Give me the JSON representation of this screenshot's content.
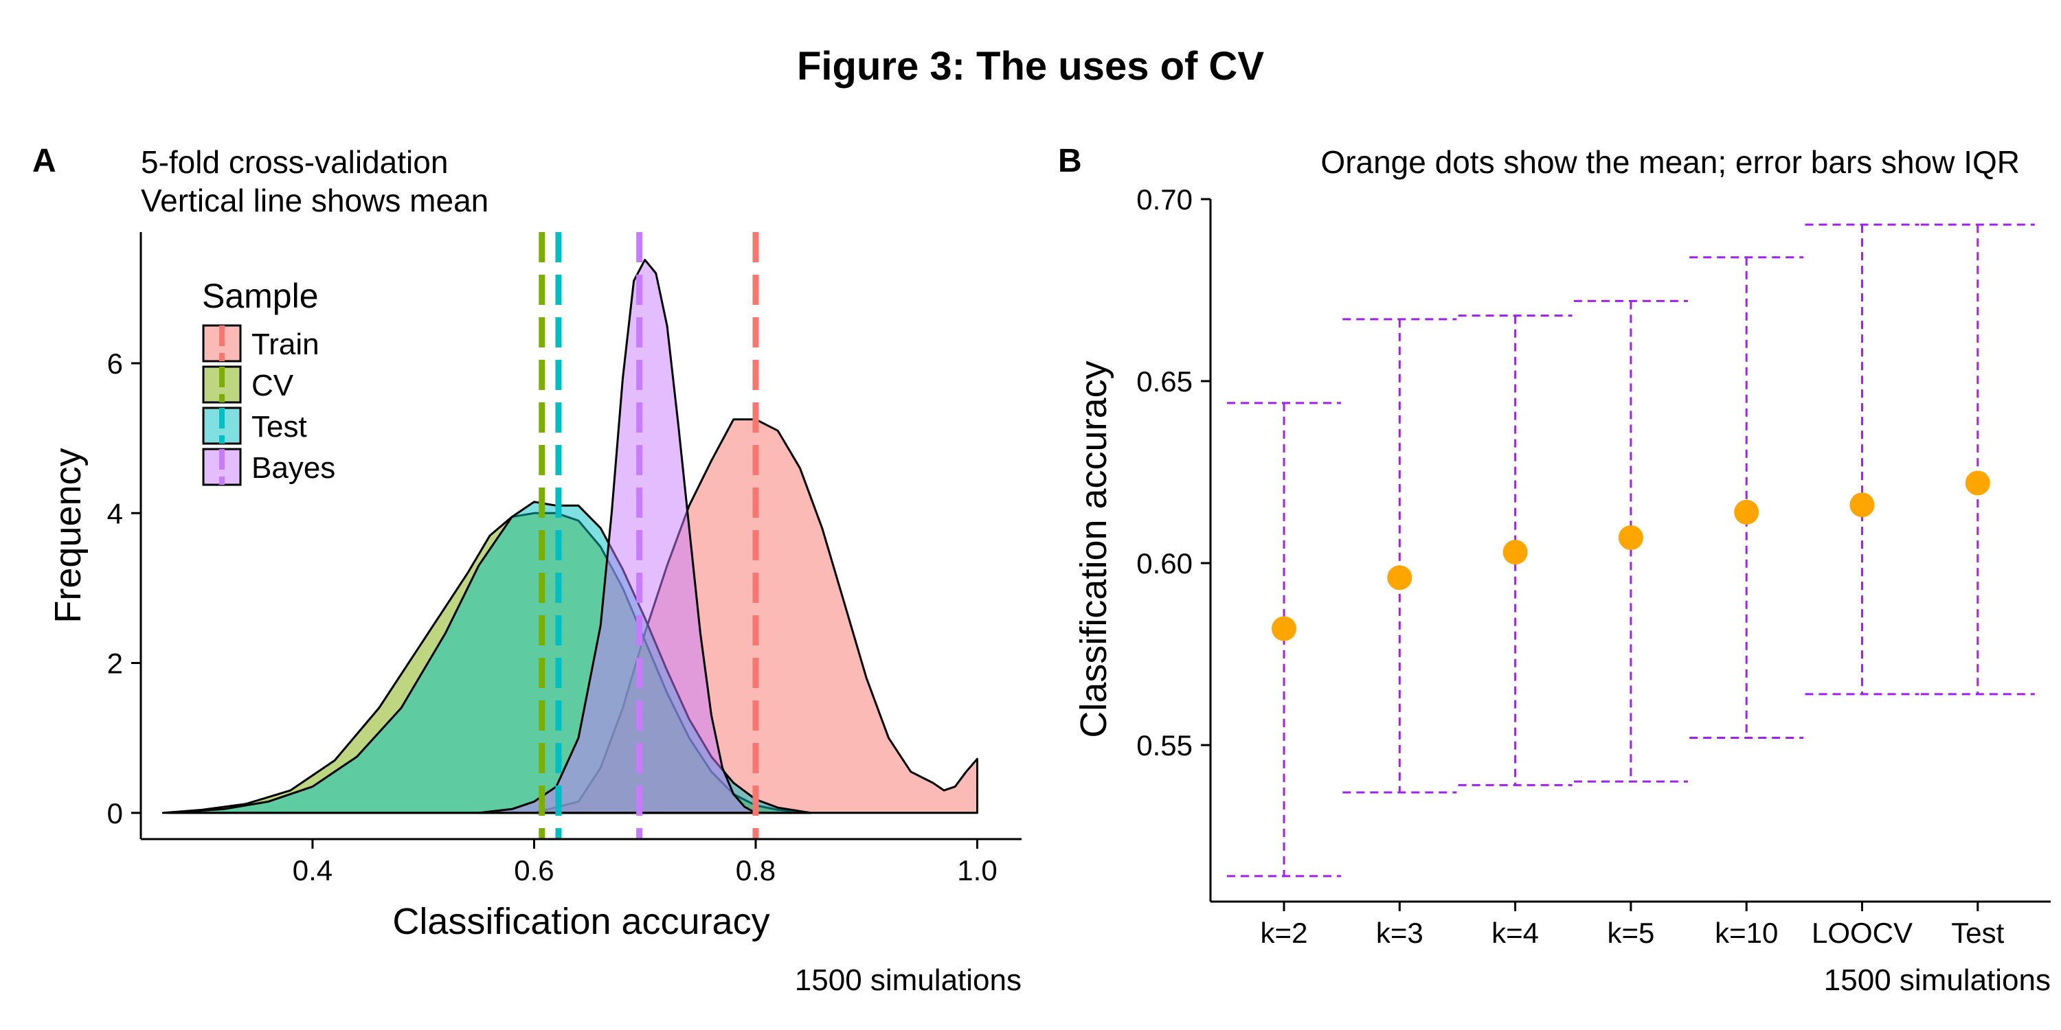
{
  "figure_title": "Figure 3: The uses of CV",
  "panel_a": {
    "letter": "A",
    "subtitle_line1": "5-fold cross-validation",
    "subtitle_line2": "Vertical line shows mean",
    "caption": "1500 simulations",
    "legend_title": "Sample"
  },
  "panel_b": {
    "letter": "B",
    "subtitle": "Orange dots show the mean; error bars show IQR",
    "caption": "1500 simulations"
  },
  "chart_data": [
    {
      "type": "area",
      "xlabel": "Classification accuracy",
      "ylabel": "Frequency",
      "xlim": [
        0.245,
        1.04
      ],
      "ylim": [
        -0.35,
        7.75
      ],
      "x_ticks": [
        "0.4",
        "0.6",
        "0.8",
        "1.0"
      ],
      "y_ticks": [
        "0",
        "2",
        "4",
        "6"
      ],
      "grid": false,
      "legend_position": "top-left",
      "series": [
        {
          "name": "Train",
          "color": "#F8766D",
          "mean": 0.8,
          "points": [
            [
              0.6,
              0.0
            ],
            [
              0.64,
              0.15
            ],
            [
              0.66,
              0.6
            ],
            [
              0.68,
              1.4
            ],
            [
              0.7,
              2.4
            ],
            [
              0.72,
              3.3
            ],
            [
              0.74,
              4.1
            ],
            [
              0.76,
              4.7
            ],
            [
              0.78,
              5.25
            ],
            [
              0.8,
              5.25
            ],
            [
              0.82,
              5.1
            ],
            [
              0.84,
              4.6
            ],
            [
              0.86,
              3.8
            ],
            [
              0.88,
              2.8
            ],
            [
              0.9,
              1.8
            ],
            [
              0.92,
              1.0
            ],
            [
              0.94,
              0.55
            ],
            [
              0.96,
              0.4
            ],
            [
              0.97,
              0.3
            ],
            [
              0.98,
              0.35
            ],
            [
              0.99,
              0.55
            ],
            [
              1.0,
              0.72
            ],
            [
              1.0,
              0.0
            ]
          ]
        },
        {
          "name": "CV",
          "color": "#7CAE00",
          "mean": 0.607,
          "points": [
            [
              0.265,
              0.0
            ],
            [
              0.3,
              0.04
            ],
            [
              0.34,
              0.12
            ],
            [
              0.38,
              0.3
            ],
            [
              0.42,
              0.7
            ],
            [
              0.46,
              1.4
            ],
            [
              0.5,
              2.3
            ],
            [
              0.54,
              3.2
            ],
            [
              0.56,
              3.7
            ],
            [
              0.58,
              3.95
            ],
            [
              0.6,
              4.0
            ],
            [
              0.62,
              4.0
            ],
            [
              0.64,
              3.9
            ],
            [
              0.66,
              3.55
            ],
            [
              0.68,
              3.0
            ],
            [
              0.7,
              2.3
            ],
            [
              0.72,
              1.6
            ],
            [
              0.74,
              1.0
            ],
            [
              0.76,
              0.55
            ],
            [
              0.78,
              0.25
            ],
            [
              0.8,
              0.1
            ],
            [
              0.82,
              0.04
            ],
            [
              0.85,
              0.0
            ]
          ]
        },
        {
          "name": "Test",
          "color": "#00BFC4",
          "mean": 0.622,
          "points": [
            [
              0.27,
              0.0
            ],
            [
              0.32,
              0.05
            ],
            [
              0.36,
              0.15
            ],
            [
              0.4,
              0.35
            ],
            [
              0.44,
              0.75
            ],
            [
              0.48,
              1.4
            ],
            [
              0.52,
              2.4
            ],
            [
              0.55,
              3.3
            ],
            [
              0.58,
              3.95
            ],
            [
              0.6,
              4.15
            ],
            [
              0.62,
              4.1
            ],
            [
              0.64,
              4.1
            ],
            [
              0.66,
              3.8
            ],
            [
              0.68,
              3.25
            ],
            [
              0.7,
              2.6
            ],
            [
              0.72,
              1.9
            ],
            [
              0.74,
              1.25
            ],
            [
              0.76,
              0.75
            ],
            [
              0.78,
              0.4
            ],
            [
              0.8,
              0.18
            ],
            [
              0.82,
              0.07
            ],
            [
              0.85,
              0.0
            ]
          ]
        },
        {
          "name": "Bayes",
          "color": "#C77CFF",
          "mean": 0.695,
          "points": [
            [
              0.55,
              0.0
            ],
            [
              0.58,
              0.05
            ],
            [
              0.6,
              0.15
            ],
            [
              0.62,
              0.35
            ],
            [
              0.64,
              1.0
            ],
            [
              0.66,
              2.5
            ],
            [
              0.67,
              4.0
            ],
            [
              0.68,
              5.8
            ],
            [
              0.69,
              7.1
            ],
            [
              0.7,
              7.38
            ],
            [
              0.71,
              7.2
            ],
            [
              0.72,
              6.5
            ],
            [
              0.73,
              5.2
            ],
            [
              0.74,
              3.8
            ],
            [
              0.75,
              2.4
            ],
            [
              0.76,
              1.3
            ],
            [
              0.77,
              0.6
            ],
            [
              0.78,
              0.25
            ],
            [
              0.79,
              0.08
            ],
            [
              0.8,
              0.0
            ]
          ]
        }
      ]
    },
    {
      "type": "scatter",
      "xlabel": "",
      "ylabel": "Classification accuracy",
      "ylim": [
        0.507,
        0.7
      ],
      "y_ticks": [
        "0.55",
        "0.60",
        "0.65",
        "0.70"
      ],
      "grid": false,
      "categories": [
        "k=2",
        "k=3",
        "k=4",
        "k=5",
        "k=10",
        "LOOCV",
        "Test"
      ],
      "mean": [
        0.582,
        0.596,
        0.603,
        0.607,
        0.614,
        0.616,
        0.622
      ],
      "iqr_low": [
        0.514,
        0.537,
        0.539,
        0.54,
        0.552,
        0.564,
        0.564
      ],
      "iqr_high": [
        0.644,
        0.667,
        0.668,
        0.672,
        0.684,
        0.693,
        0.693
      ],
      "point_color": "#FFA500",
      "errorbar_color": "#A020F0"
    }
  ]
}
